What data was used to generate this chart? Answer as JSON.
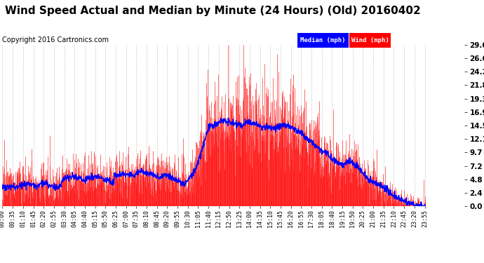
{
  "title": "Wind Speed Actual and Median by Minute (24 Hours) (Old) 20160402",
  "copyright": "Copyright 2016 Cartronics.com",
  "legend_median_label": "Median (mph)",
  "legend_wind_label": "Wind (mph)",
  "legend_median_bg": "#0000FF",
  "legend_wind_bg": "#FF0000",
  "bg_color": "#FFFFFF",
  "plot_bg_color": "#FFFFFF",
  "grid_color": "#BBBBBB",
  "wind_color": "#FF0000",
  "median_color": "#0000FF",
  "yticks": [
    0.0,
    2.4,
    4.8,
    7.2,
    9.7,
    12.1,
    14.5,
    16.9,
    19.3,
    21.8,
    24.2,
    26.6,
    29.0
  ],
  "ymin": 0.0,
  "ymax": 29.0,
  "title_fontsize": 11,
  "copyright_fontsize": 7,
  "tick_fontsize": 6,
  "num_minutes": 1440
}
